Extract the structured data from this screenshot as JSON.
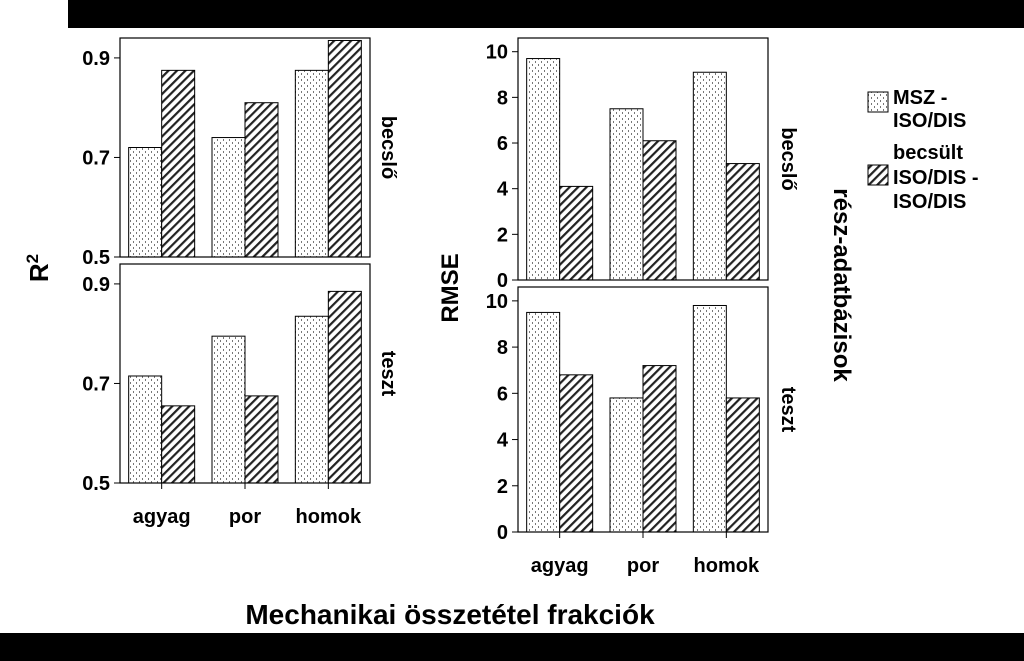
{
  "xlabel": "Mechanikai összetétel frakciók",
  "side_label": "rész-adatbázisok",
  "legend": {
    "items": [
      {
        "label_lines": [
          "MSZ -",
          "ISO/DIS"
        ],
        "pattern": "dotted"
      },
      {
        "label_lines": [
          "becsült",
          "ISO/DIS -",
          "ISO/DIS"
        ],
        "pattern": "hatched"
      }
    ]
  },
  "chart_data": [
    {
      "type": "bar",
      "panel": "R2-becslo",
      "ylabel": "R2",
      "facet": "becslő",
      "categories": [
        "agyag",
        "por",
        "homok"
      ],
      "series": [
        {
          "name": "MSZ - ISO/DIS",
          "values": [
            0.72,
            0.74,
            0.875
          ]
        },
        {
          "name": "becsült ISO/DIS - ISO/DIS",
          "values": [
            0.875,
            0.81,
            0.935
          ]
        }
      ],
      "ylim": [
        0.5,
        0.94
      ],
      "yticks": [
        "0.5",
        "0.7",
        "0.9"
      ]
    },
    {
      "type": "bar",
      "panel": "R2-teszt",
      "ylabel": "R2",
      "facet": "teszt",
      "categories": [
        "agyag",
        "por",
        "homok"
      ],
      "series": [
        {
          "name": "MSZ - ISO/DIS",
          "values": [
            0.715,
            0.795,
            0.835
          ]
        },
        {
          "name": "becsült ISO/DIS - ISO/DIS",
          "values": [
            0.655,
            0.675,
            0.885
          ]
        }
      ],
      "ylim": [
        0.5,
        0.94
      ],
      "yticks": [
        "0.5",
        "0.7",
        "0.9"
      ]
    },
    {
      "type": "bar",
      "panel": "RMSE-becslo",
      "ylabel": "RMSE",
      "facet": "becslő",
      "categories": [
        "agyag",
        "por",
        "homok"
      ],
      "series": [
        {
          "name": "MSZ - ISO/DIS",
          "values": [
            9.7,
            7.5,
            9.1
          ]
        },
        {
          "name": "becsült ISO/DIS - ISO/DIS",
          "values": [
            4.1,
            6.1,
            5.1
          ]
        }
      ],
      "ylim": [
        0,
        10.6
      ],
      "yticks": [
        "0",
        "2",
        "4",
        "6",
        "8",
        "10"
      ]
    },
    {
      "type": "bar",
      "panel": "RMSE-teszt",
      "ylabel": "RMSE",
      "facet": "teszt",
      "categories": [
        "agyag",
        "por",
        "homok"
      ],
      "series": [
        {
          "name": "MSZ - ISO/DIS",
          "values": [
            9.5,
            5.8,
            9.8
          ]
        },
        {
          "name": "becsült ISO/DIS - ISO/DIS",
          "values": [
            6.8,
            7.2,
            5.8
          ]
        }
      ],
      "ylim": [
        0,
        10.6
      ],
      "yticks": [
        "0",
        "2",
        "4",
        "6",
        "8",
        "10"
      ]
    }
  ]
}
